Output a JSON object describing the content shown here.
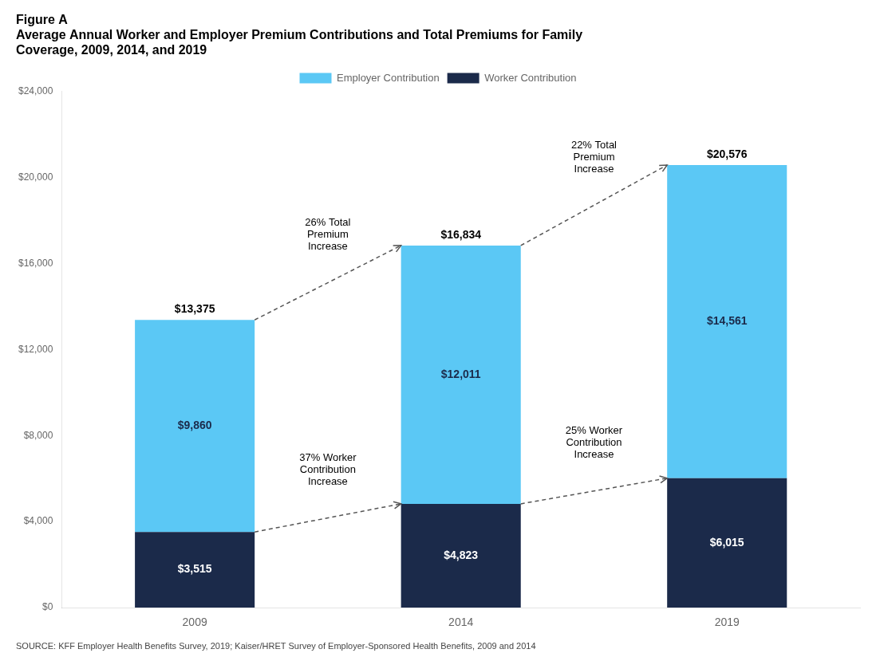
{
  "chart_data": {
    "type": "bar",
    "title": [
      "Figure A",
      "Average Annual Worker and Employer Premium Contributions and Total Premiums for Family",
      "Coverage, 2009, 2014, and 2019"
    ],
    "source": "SOURCE: KFF Employer Health Benefits Survey, 2019; Kaiser/HRET Survey of Employer-Sponsored Health Benefits, 2009 and 2014",
    "categories": [
      "2009",
      "2014",
      "2019"
    ],
    "series": [
      {
        "name": "Worker Contribution",
        "color": "#1B2A4A",
        "values": [
          3515,
          4823,
          6015
        ],
        "value_labels": [
          "$3,515",
          "$4,823",
          "$6,015"
        ],
        "annotations": [
          "37% Worker\nContribution\nIncrease",
          "25% Worker\nContribution\nIncrease"
        ]
      },
      {
        "name": "Employer Contribution",
        "color": "#5BC8F5",
        "values": [
          9860,
          12011,
          14561
        ],
        "value_labels": [
          "$9,860",
          "$12,011",
          "$14,561"
        ]
      }
    ],
    "totals": {
      "values": [
        13375,
        16834,
        20576
      ],
      "value_labels": [
        "$13,375",
        "$16,834",
        "$20,576"
      ],
      "annotations": [
        "26% Total\nPremium\nIncrease",
        "22% Total\nPremium\nIncrease"
      ]
    },
    "stacked": true,
    "data_labels": true,
    "grid": false,
    "legend": "top",
    "ylim": [
      0,
      24000
    ],
    "yticks": [
      {
        "value": 0,
        "label": "$0"
      },
      {
        "value": 4000,
        "label": "$4,000"
      },
      {
        "value": 8000,
        "label": "$8,000"
      },
      {
        "value": 12000,
        "label": "$12,000"
      },
      {
        "value": 16000,
        "label": "$16,000"
      },
      {
        "value": 20000,
        "label": "$20,000"
      },
      {
        "value": 24000,
        "label": "$24,000"
      }
    ]
  }
}
